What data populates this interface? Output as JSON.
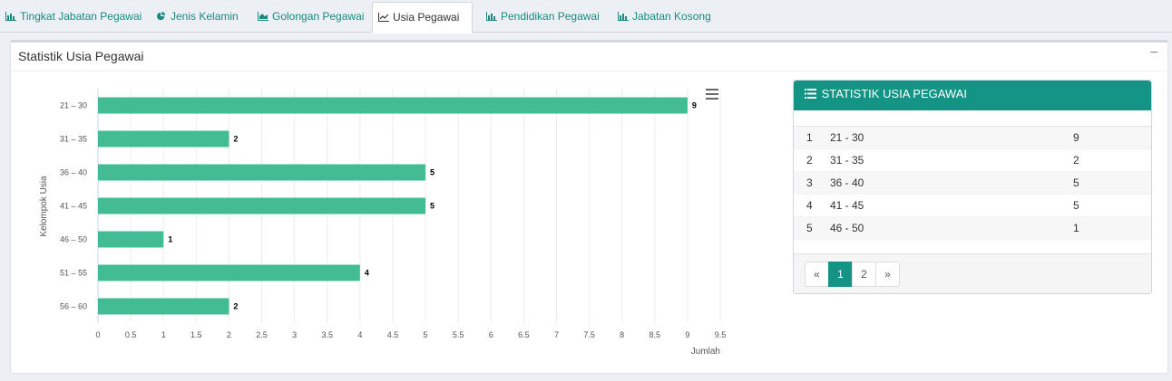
{
  "tabs": [
    {
      "label": "Tingkat Jabatan Pegawai",
      "icon": "bar-chart-icon"
    },
    {
      "label": "Jenis Kelamin",
      "icon": "pie-chart-icon"
    },
    {
      "label": "Golongan Pegawai",
      "icon": "area-chart-icon"
    },
    {
      "label": "Usia Pegawai",
      "icon": "line-chart-icon",
      "active": true
    },
    {
      "label": "Pendidikan Pegawai",
      "icon": "bar-chart-icon"
    },
    {
      "label": "Jabatan Kosong",
      "icon": "bar-chart-icon"
    }
  ],
  "panel": {
    "title": "Statistik Usia Pegawai",
    "collapse_symbol": "−"
  },
  "colors": {
    "accent": "#149485",
    "bar": "#43bc94",
    "tab_text": "#1a8a80"
  },
  "chart_data": {
    "type": "bar",
    "orientation": "horizontal",
    "categories": [
      "21 – 30",
      "31 – 35",
      "36 – 40",
      "41 – 45",
      "46 – 50",
      "51 – 55",
      "56 – 60"
    ],
    "values": [
      9,
      2,
      5,
      5,
      1,
      4,
      2
    ],
    "x_ticks": [
      "0",
      "0.5",
      "1",
      "1.5",
      "2",
      "2.5",
      "3",
      "3.5",
      "4",
      "4.5",
      "5",
      "5.5",
      "6",
      "6.5",
      "7",
      "7.5",
      "8",
      "8.5",
      "9",
      "9.5"
    ],
    "xlim": [
      0,
      9.5
    ],
    "title": "",
    "xlabel": "Jumlah",
    "ylabel": "Kelompok Usia",
    "grid": true,
    "data_labels": true
  },
  "stat_box": {
    "title": "STATISTIK USIA PEGAWAI",
    "icon": "list-icon",
    "rows": [
      {
        "no": "1",
        "range": "21 - 30",
        "value": "9"
      },
      {
        "no": "2",
        "range": "31 - 35",
        "value": "2"
      },
      {
        "no": "3",
        "range": "36 - 40",
        "value": "5"
      },
      {
        "no": "4",
        "range": "41 - 45",
        "value": "5"
      },
      {
        "no": "5",
        "range": "46 - 50",
        "value": "1"
      }
    ],
    "pagination": {
      "prev": "«",
      "pages": [
        "1",
        "2"
      ],
      "active": "1",
      "next": "»"
    }
  }
}
